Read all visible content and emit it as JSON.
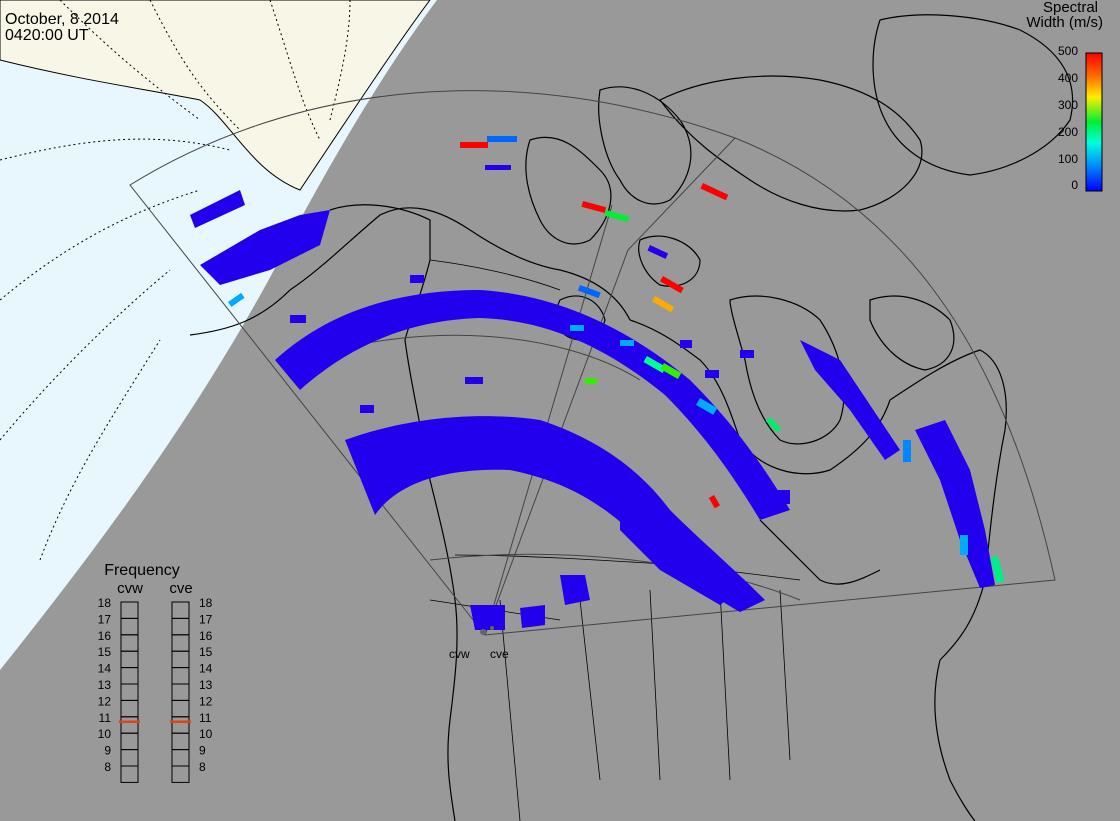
{
  "header": {
    "date": "October, 8 2014",
    "time": "0420:00 UT"
  },
  "colorbar": {
    "title_line1": "Spectral",
    "title_line2": "Width (m/s)",
    "ticks": [
      "500",
      "400",
      "300",
      "200",
      "100",
      "0"
    ],
    "colors": [
      "#0000ff",
      "#00aaff",
      "#00ff55",
      "#ffcc00",
      "#ff4400",
      "#ff0000"
    ]
  },
  "frequency": {
    "title": "Frequency",
    "left_label": "cvw",
    "right_label": "cve",
    "ticks": [
      "18",
      "17",
      "16",
      "15",
      "14",
      "13",
      "12",
      "11",
      "10",
      "9",
      "8"
    ],
    "cvw_value": 10.7,
    "cve_value": 10.7,
    "marker_color": "#dd4411"
  },
  "map": {
    "radar_labels": [
      "cvw",
      "cve"
    ],
    "land_color": "#f8f6e6",
    "ocean_color": "#e8f6fd",
    "night_color": "#999999",
    "echo_color": "#2200ee"
  }
}
